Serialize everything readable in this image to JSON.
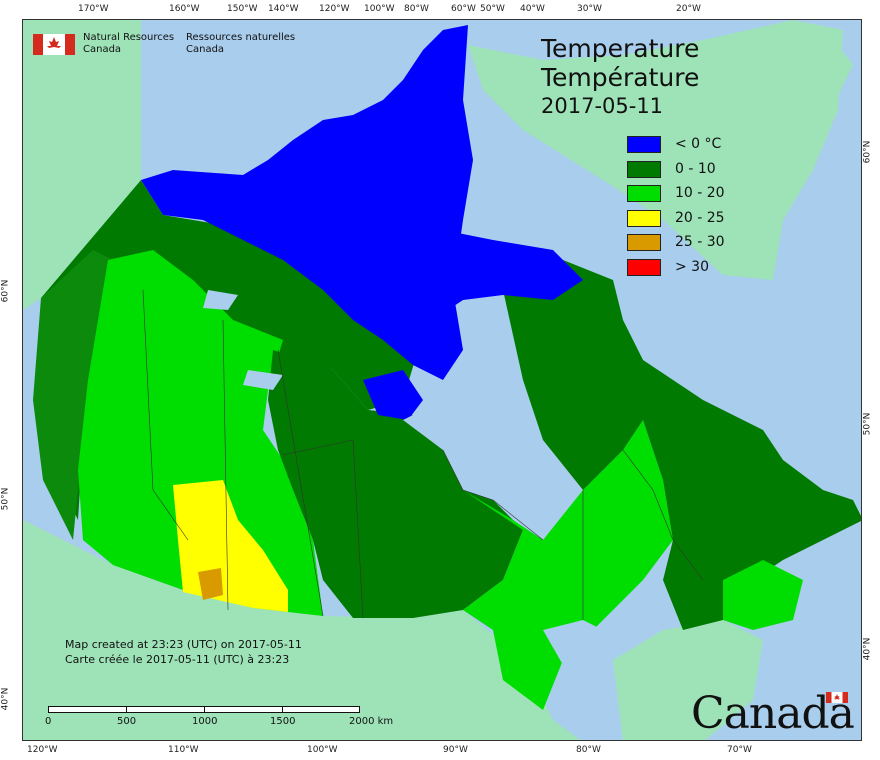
{
  "map": {
    "top_ticks": [
      "170°W",
      "160°W",
      "150°W",
      "140°W",
      "120°W",
      "100°W",
      "80°W",
      "60°W",
      "50°W",
      "40°W",
      "30°W",
      "20°W"
    ],
    "bottom_ticks": [
      "120°W",
      "110°W",
      "100°W",
      "90°W",
      "80°W",
      "70°W"
    ],
    "left_ticks": [
      "60°N",
      "50°N",
      "40°N"
    ],
    "right_ticks": [
      "60°N",
      "50°N",
      "40°N"
    ]
  },
  "agency": {
    "name_en_1": "Natural Resources",
    "name_en_2": "Canada",
    "name_fr_1": "Ressources naturelles",
    "name_fr_2": "Canada"
  },
  "title": {
    "line1": "Temperature",
    "line2": "Température",
    "date": "2017-05-11"
  },
  "legend": [
    {
      "label": "< 0 °C",
      "color": "#0000ff"
    },
    {
      "label": "0 - 10",
      "color": "#007a00"
    },
    {
      "label": "10 - 20",
      "color": "#00dd00"
    },
    {
      "label": "20 - 25",
      "color": "#ffff00"
    },
    {
      "label": "25 - 30",
      "color": "#d99a00"
    },
    {
      "label": "> 30",
      "color": "#ff0000"
    }
  ],
  "credit": {
    "line1": "Map created at 23:23 (UTC) on 2017-05-11",
    "line2": "Carte créée le 2017-05-11 (UTC) à 23:23"
  },
  "scale": {
    "labels": [
      "0",
      "500",
      "1000",
      "1500",
      "2000 km"
    ]
  },
  "wordmark": "Canada",
  "colors": {
    "water": "#a9cdec",
    "foreign_land": "#9ee3b8"
  }
}
